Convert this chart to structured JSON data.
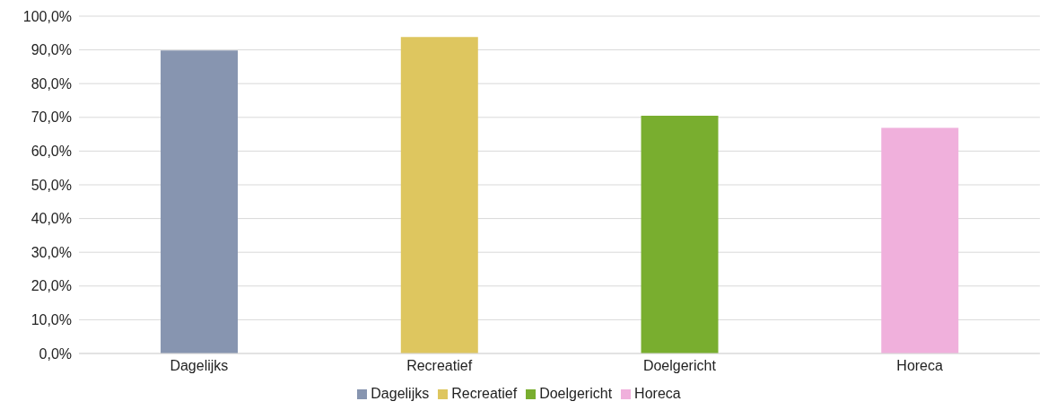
{
  "chart_data": {
    "type": "bar",
    "categories": [
      "Dagelijks",
      "Recreatief",
      "Doelgericht",
      "Horeca"
    ],
    "series": [
      {
        "name": "Dagelijks",
        "color": "#8795b0",
        "values": [
          89.8,
          null,
          null,
          null
        ]
      },
      {
        "name": "Recreatief",
        "color": "#dec65f",
        "values": [
          null,
          93.8,
          null,
          null
        ]
      },
      {
        "name": "Doelgericht",
        "color": "#79ae2f",
        "values": [
          null,
          null,
          70.5,
          null
        ]
      },
      {
        "name": "Horeca",
        "color": "#f0b0dc",
        "values": [
          null,
          null,
          null,
          66.9
        ]
      }
    ],
    "stacked": true,
    "ylim": [
      0,
      100
    ],
    "yticks": [
      {
        "value": 0,
        "label": "0,0%"
      },
      {
        "value": 10,
        "label": "10,0%"
      },
      {
        "value": 20,
        "label": "20,0%"
      },
      {
        "value": 30,
        "label": "30,0%"
      },
      {
        "value": 40,
        "label": "40,0%"
      },
      {
        "value": 50,
        "label": "50,0%"
      },
      {
        "value": 60,
        "label": "60,0%"
      },
      {
        "value": 70,
        "label": "70,0%"
      },
      {
        "value": 80,
        "label": "80,0%"
      },
      {
        "value": 90,
        "label": "90,0%"
      },
      {
        "value": 100,
        "label": "100,0%"
      }
    ],
    "grid": "y",
    "legend": "bottom"
  }
}
